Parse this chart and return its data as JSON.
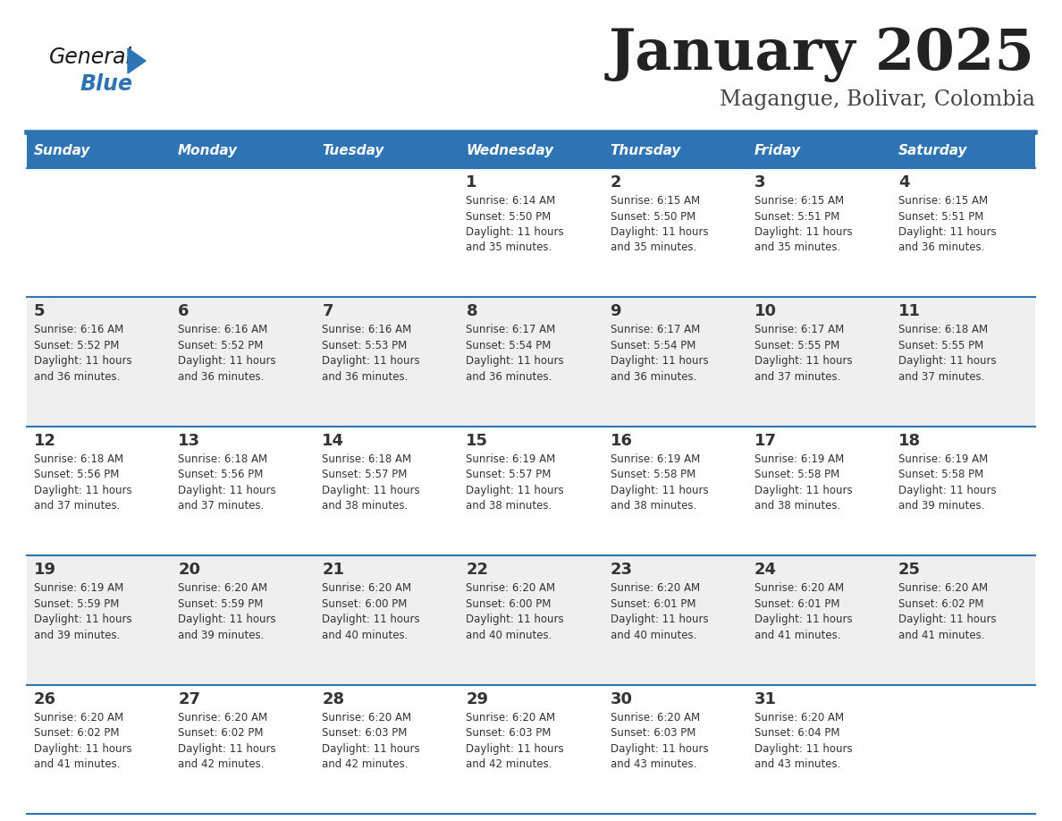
{
  "title": "January 2025",
  "subtitle": "Magangue, Bolivar, Colombia",
  "days_of_week": [
    "Sunday",
    "Monday",
    "Tuesday",
    "Wednesday",
    "Thursday",
    "Friday",
    "Saturday"
  ],
  "header_bg": "#2E74B5",
  "header_text": "#FFFFFF",
  "row_bg_light": "#EFEFEF",
  "row_bg_white": "#FFFFFF",
  "cell_text": "#333333",
  "day_num_color": "#333333",
  "border_color": "#2E74B5",
  "title_color": "#222222",
  "subtitle_color": "#444444",
  "logo_general_color": "#1a1a1a",
  "logo_blue_color": "#2E74B5",
  "row_backgrounds": [
    "#FFFFFF",
    "#EFEFEF",
    "#FFFFFF",
    "#EFEFEF",
    "#FFFFFF"
  ],
  "calendar_data": [
    [
      {
        "day": null,
        "sunrise": null,
        "sunset": null,
        "daylight": null
      },
      {
        "day": null,
        "sunrise": null,
        "sunset": null,
        "daylight": null
      },
      {
        "day": null,
        "sunrise": null,
        "sunset": null,
        "daylight": null
      },
      {
        "day": 1,
        "sunrise": "6:14 AM",
        "sunset": "5:50 PM",
        "daylight": "11 hours and 35 minutes."
      },
      {
        "day": 2,
        "sunrise": "6:15 AM",
        "sunset": "5:50 PM",
        "daylight": "11 hours and 35 minutes."
      },
      {
        "day": 3,
        "sunrise": "6:15 AM",
        "sunset": "5:51 PM",
        "daylight": "11 hours and 35 minutes."
      },
      {
        "day": 4,
        "sunrise": "6:15 AM",
        "sunset": "5:51 PM",
        "daylight": "11 hours and 36 minutes."
      }
    ],
    [
      {
        "day": 5,
        "sunrise": "6:16 AM",
        "sunset": "5:52 PM",
        "daylight": "11 hours and 36 minutes."
      },
      {
        "day": 6,
        "sunrise": "6:16 AM",
        "sunset": "5:52 PM",
        "daylight": "11 hours and 36 minutes."
      },
      {
        "day": 7,
        "sunrise": "6:16 AM",
        "sunset": "5:53 PM",
        "daylight": "11 hours and 36 minutes."
      },
      {
        "day": 8,
        "sunrise": "6:17 AM",
        "sunset": "5:54 PM",
        "daylight": "11 hours and 36 minutes."
      },
      {
        "day": 9,
        "sunrise": "6:17 AM",
        "sunset": "5:54 PM",
        "daylight": "11 hours and 36 minutes."
      },
      {
        "day": 10,
        "sunrise": "6:17 AM",
        "sunset": "5:55 PM",
        "daylight": "11 hours and 37 minutes."
      },
      {
        "day": 11,
        "sunrise": "6:18 AM",
        "sunset": "5:55 PM",
        "daylight": "11 hours and 37 minutes."
      }
    ],
    [
      {
        "day": 12,
        "sunrise": "6:18 AM",
        "sunset": "5:56 PM",
        "daylight": "11 hours and 37 minutes."
      },
      {
        "day": 13,
        "sunrise": "6:18 AM",
        "sunset": "5:56 PM",
        "daylight": "11 hours and 37 minutes."
      },
      {
        "day": 14,
        "sunrise": "6:18 AM",
        "sunset": "5:57 PM",
        "daylight": "11 hours and 38 minutes."
      },
      {
        "day": 15,
        "sunrise": "6:19 AM",
        "sunset": "5:57 PM",
        "daylight": "11 hours and 38 minutes."
      },
      {
        "day": 16,
        "sunrise": "6:19 AM",
        "sunset": "5:58 PM",
        "daylight": "11 hours and 38 minutes."
      },
      {
        "day": 17,
        "sunrise": "6:19 AM",
        "sunset": "5:58 PM",
        "daylight": "11 hours and 38 minutes."
      },
      {
        "day": 18,
        "sunrise": "6:19 AM",
        "sunset": "5:58 PM",
        "daylight": "11 hours and 39 minutes."
      }
    ],
    [
      {
        "day": 19,
        "sunrise": "6:19 AM",
        "sunset": "5:59 PM",
        "daylight": "11 hours and 39 minutes."
      },
      {
        "day": 20,
        "sunrise": "6:20 AM",
        "sunset": "5:59 PM",
        "daylight": "11 hours and 39 minutes."
      },
      {
        "day": 21,
        "sunrise": "6:20 AM",
        "sunset": "6:00 PM",
        "daylight": "11 hours and 40 minutes."
      },
      {
        "day": 22,
        "sunrise": "6:20 AM",
        "sunset": "6:00 PM",
        "daylight": "11 hours and 40 minutes."
      },
      {
        "day": 23,
        "sunrise": "6:20 AM",
        "sunset": "6:01 PM",
        "daylight": "11 hours and 40 minutes."
      },
      {
        "day": 24,
        "sunrise": "6:20 AM",
        "sunset": "6:01 PM",
        "daylight": "11 hours and 41 minutes."
      },
      {
        "day": 25,
        "sunrise": "6:20 AM",
        "sunset": "6:02 PM",
        "daylight": "11 hours and 41 minutes."
      }
    ],
    [
      {
        "day": 26,
        "sunrise": "6:20 AM",
        "sunset": "6:02 PM",
        "daylight": "11 hours and 41 minutes."
      },
      {
        "day": 27,
        "sunrise": "6:20 AM",
        "sunset": "6:02 PM",
        "daylight": "11 hours and 42 minutes."
      },
      {
        "day": 28,
        "sunrise": "6:20 AM",
        "sunset": "6:03 PM",
        "daylight": "11 hours and 42 minutes."
      },
      {
        "day": 29,
        "sunrise": "6:20 AM",
        "sunset": "6:03 PM",
        "daylight": "11 hours and 42 minutes."
      },
      {
        "day": 30,
        "sunrise": "6:20 AM",
        "sunset": "6:03 PM",
        "daylight": "11 hours and 43 minutes."
      },
      {
        "day": 31,
        "sunrise": "6:20 AM",
        "sunset": "6:04 PM",
        "daylight": "11 hours and 43 minutes."
      },
      {
        "day": null,
        "sunrise": null,
        "sunset": null,
        "daylight": null
      }
    ]
  ]
}
